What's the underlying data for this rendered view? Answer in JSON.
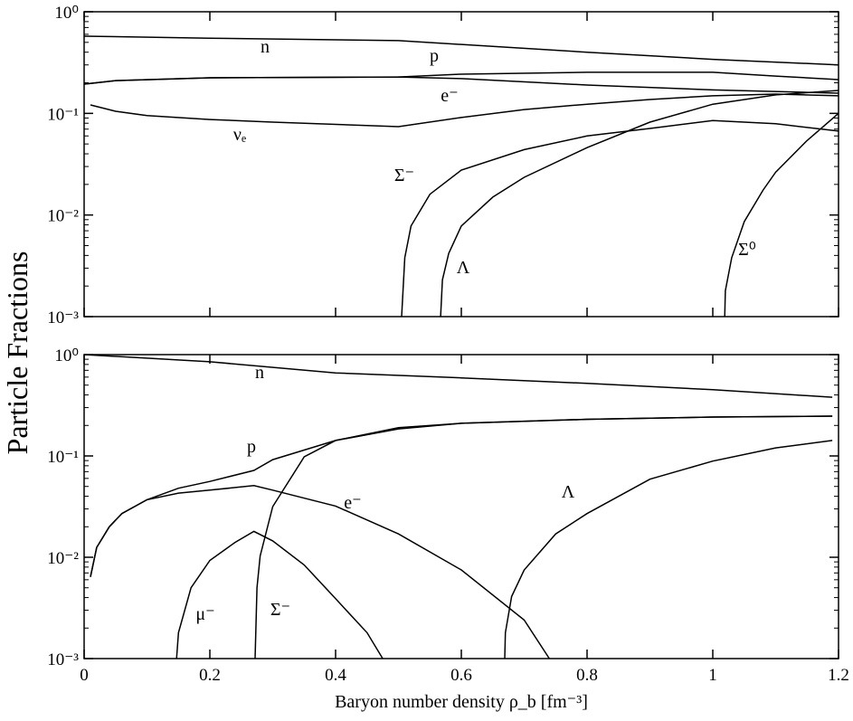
{
  "chart_data": [
    {
      "type": "line",
      "ylabel": "Particle Fractions",
      "log_y": true,
      "xlim": [
        0,
        1.2
      ],
      "xticks": [
        0,
        0.2,
        0.4,
        0.6,
        0.8,
        1,
        1.2
      ],
      "ylim": [
        0.001,
        1
      ],
      "yticks": [
        {
          "value": 0.001,
          "label": "10⁻³"
        },
        {
          "value": 0.01,
          "label": "10⁻²"
        },
        {
          "value": 0.1,
          "label": "10⁻¹"
        },
        {
          "value": 1,
          "label": "10⁰"
        }
      ],
      "series": [
        {
          "name": "n",
          "color": "#000000",
          "x": [
            0,
            0.2,
            0.5,
            0.8,
            1.0,
            1.2
          ],
          "values": [
            0.575,
            0.55,
            0.52,
            0.4,
            0.34,
            0.3
          ]
        },
        {
          "name": "p",
          "color": "#000000",
          "x": [
            0,
            0.05,
            0.2,
            0.5,
            0.6,
            0.8,
            1.0,
            1.1,
            1.2
          ],
          "values": [
            0.194,
            0.21,
            0.224,
            0.228,
            0.243,
            0.254,
            0.254,
            0.233,
            0.215
          ]
        },
        {
          "name": "e⁻",
          "color": "#000000",
          "x": [
            0,
            0.05,
            0.2,
            0.5,
            0.6,
            0.8,
            1.0,
            1.2
          ],
          "values": [
            0.194,
            0.21,
            0.224,
            0.228,
            0.22,
            0.19,
            0.17,
            0.158
          ]
        },
        {
          "name": "νₑ",
          "color": "#000000",
          "x": [
            0.01,
            0.05,
            0.1,
            0.2,
            0.3,
            0.5,
            0.6,
            0.7,
            0.8,
            0.9,
            1.0,
            1.1,
            1.2
          ],
          "values": [
            0.121,
            0.105,
            0.095,
            0.087,
            0.082,
            0.074,
            0.091,
            0.109,
            0.123,
            0.137,
            0.149,
            0.155,
            0.149
          ]
        },
        {
          "name": "Σ⁻",
          "color": "#000000",
          "x": [
            0.505,
            0.51,
            0.52,
            0.55,
            0.6,
            0.7,
            0.8,
            0.9,
            1.0,
            1.1,
            1.2
          ],
          "values": [
            0.001,
            0.0038,
            0.0078,
            0.016,
            0.0277,
            0.044,
            0.06,
            0.071,
            0.085,
            0.079,
            0.067
          ]
        },
        {
          "name": "Λ",
          "color": "#000000",
          "x": [
            0.567,
            0.57,
            0.58,
            0.6,
            0.65,
            0.7,
            0.8,
            0.9,
            1.0,
            1.1,
            1.2
          ],
          "values": [
            0.001,
            0.0023,
            0.0042,
            0.0078,
            0.015,
            0.0235,
            0.046,
            0.082,
            0.123,
            0.152,
            0.168
          ]
        },
        {
          "name": "Σ⁰",
          "color": "#000000",
          "x": [
            1.019,
            1.02,
            1.03,
            1.05,
            1.08,
            1.1,
            1.15,
            1.2
          ],
          "values": [
            0.001,
            0.0018,
            0.0038,
            0.0086,
            0.0176,
            0.0264,
            0.054,
            0.1
          ]
        }
      ]
    },
    {
      "type": "line",
      "xlabel": "Baryon number density ρ_b [fm⁻³]",
      "log_y": true,
      "xlim": [
        0,
        1.2
      ],
      "xticks": [
        0,
        0.2,
        0.4,
        0.6,
        0.8,
        1,
        1.2
      ],
      "ylim": [
        0.001,
        1
      ],
      "yticks": [
        {
          "value": 0.001,
          "label": "10⁻³"
        },
        {
          "value": 0.01,
          "label": "10⁻²"
        },
        {
          "value": 0.1,
          "label": "10⁻¹"
        },
        {
          "value": 1,
          "label": "10⁰"
        }
      ],
      "series": [
        {
          "name": "n",
          "color": "#000000",
          "x": [
            0,
            0.2,
            0.4,
            0.6,
            0.8,
            1.0,
            1.19
          ],
          "values": [
            1.0,
            0.85,
            0.66,
            0.59,
            0.52,
            0.45,
            0.38
          ]
        },
        {
          "name": "p",
          "color": "#000000",
          "x": [
            0.01,
            0.02,
            0.04,
            0.06,
            0.1,
            0.15,
            0.2,
            0.27,
            0.3,
            0.4,
            0.5,
            0.6,
            0.8,
            1.0,
            1.19
          ],
          "values": [
            0.0064,
            0.0125,
            0.02,
            0.027,
            0.037,
            0.048,
            0.056,
            0.072,
            0.092,
            0.142,
            0.185,
            0.21,
            0.23,
            0.242,
            0.247
          ]
        },
        {
          "name": "e⁻",
          "color": "#000000",
          "x": [
            0.01,
            0.02,
            0.04,
            0.06,
            0.1,
            0.15,
            0.2,
            0.27,
            0.3,
            0.4,
            0.5,
            0.6,
            0.7,
            0.74
          ],
          "values": [
            0.0064,
            0.0125,
            0.02,
            0.027,
            0.037,
            0.043,
            0.046,
            0.051,
            0.046,
            0.032,
            0.017,
            0.0075,
            0.0024,
            0.001
          ]
        },
        {
          "name": "Λ",
          "color": "#000000",
          "x": [
            0.669,
            0.67,
            0.68,
            0.7,
            0.75,
            0.8,
            0.9,
            1.0,
            1.1,
            1.19
          ],
          "values": [
            0.001,
            0.0018,
            0.0041,
            0.0075,
            0.017,
            0.027,
            0.059,
            0.089,
            0.12,
            0.142
          ]
        },
        {
          "name": "μ⁻",
          "color": "#000000",
          "x": [
            0.147,
            0.15,
            0.17,
            0.2,
            0.24,
            0.27,
            0.3,
            0.35,
            0.4,
            0.45,
            0.475
          ],
          "values": [
            0.001,
            0.0018,
            0.005,
            0.0093,
            0.014,
            0.018,
            0.0145,
            0.0084,
            0.0039,
            0.0018,
            0.001
          ]
        },
        {
          "name": "Σ⁻",
          "color": "#000000",
          "x": [
            0.272,
            0.275,
            0.28,
            0.3,
            0.35,
            0.4,
            0.5,
            0.6,
            0.8,
            1.0,
            1.19
          ],
          "values": [
            0.001,
            0.005,
            0.0103,
            0.0316,
            0.098,
            0.142,
            0.19,
            0.21,
            0.23,
            0.242,
            0.247
          ]
        }
      ]
    }
  ]
}
